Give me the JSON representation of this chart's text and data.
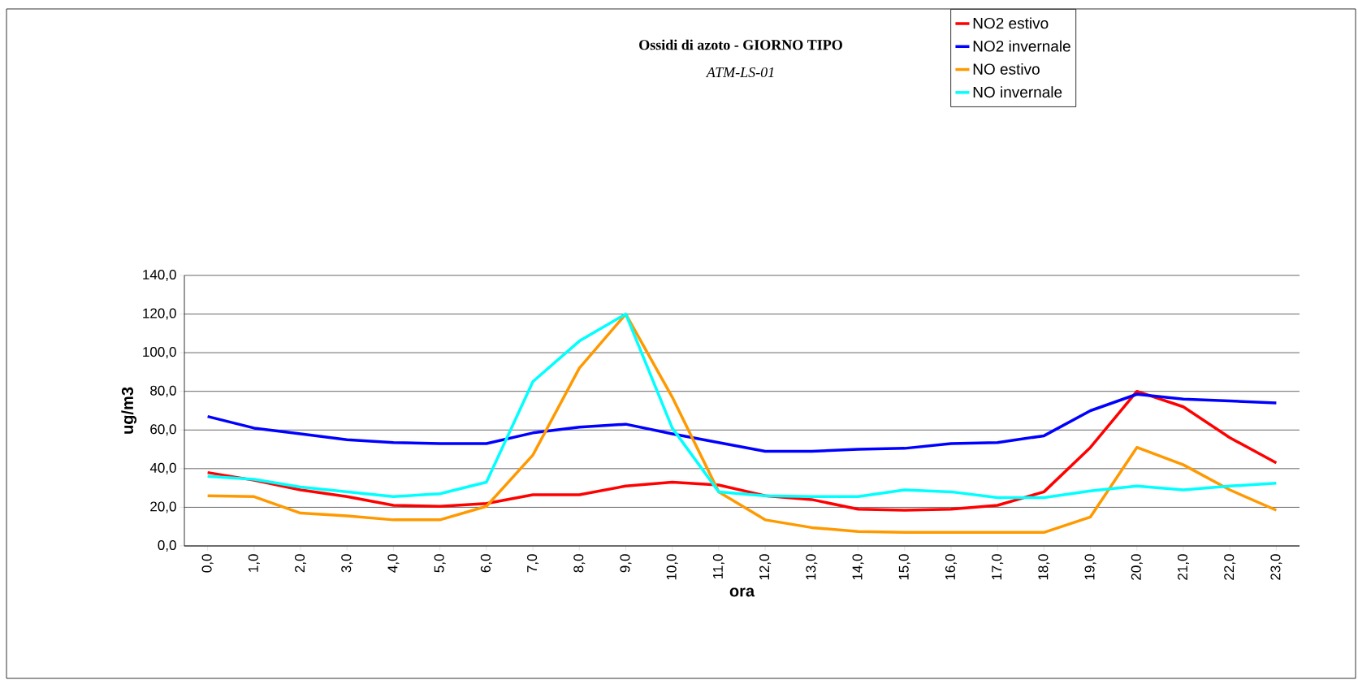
{
  "chart_data": {
    "type": "line",
    "title": "Ossidi di azoto - GIORNO TIPO",
    "subtitle": "ATM-LS-01",
    "xlabel": "ora",
    "ylabel": "ug/m3",
    "categories": [
      "0,0",
      "1,0",
      "2,0",
      "3,0",
      "4,0",
      "5,0",
      "6,0",
      "7,0",
      "8,0",
      "9,0",
      "10,0",
      "11,0",
      "12,0",
      "13,0",
      "14,0",
      "15,0",
      "16,0",
      "17,0",
      "18,0",
      "19,0",
      "20,0",
      "21,0",
      "22,0",
      "23,0"
    ],
    "series": [
      {
        "name": "NO2 estivo",
        "color": "#ff0000",
        "values": [
          38,
          34,
          29,
          25.5,
          21,
          20.5,
          22,
          26.5,
          26.5,
          31,
          33,
          31.5,
          26,
          24,
          19,
          18.5,
          19,
          21,
          28,
          51,
          80,
          72,
          56,
          43
        ]
      },
      {
        "name": "NO2 invernale",
        "color": "#0000ff",
        "values": [
          67,
          61,
          58,
          55,
          53.5,
          53,
          53,
          58.5,
          61.5,
          63,
          58,
          53.5,
          49,
          49,
          50,
          50.5,
          53,
          53.5,
          57,
          70,
          78.5,
          76,
          75,
          74
        ]
      },
      {
        "name": "NO estivo",
        "color": "#ff9900",
        "values": [
          26,
          25.5,
          17,
          15.5,
          13.5,
          13.5,
          20.5,
          47,
          92,
          120,
          77,
          28,
          13.5,
          9.5,
          7.5,
          7,
          7,
          7,
          7,
          15,
          51,
          42,
          29,
          18.5
        ]
      },
      {
        "name": "NO invernale",
        "color": "#00ffff",
        "values": [
          36,
          34.5,
          30.5,
          28,
          25.5,
          27,
          33,
          85,
          106,
          120,
          61,
          28,
          26,
          25.5,
          25.5,
          29,
          28,
          25,
          25,
          28.5,
          31,
          29,
          31,
          32.5
        ]
      }
    ],
    "ylim": [
      0,
      140
    ],
    "yticks": [
      {
        "value": 0,
        "label": "0,0"
      },
      {
        "value": 20,
        "label": "20,0"
      },
      {
        "value": 40,
        "label": "40,0"
      },
      {
        "value": 60,
        "label": "60,0"
      },
      {
        "value": 80,
        "label": "80,0"
      },
      {
        "value": 100,
        "label": "100,0"
      },
      {
        "value": 120,
        "label": "120,0"
      },
      {
        "value": 140,
        "label": "140,0"
      }
    ],
    "grid": "y",
    "legend": "top right",
    "marker": "none",
    "line_style": "solid"
  }
}
